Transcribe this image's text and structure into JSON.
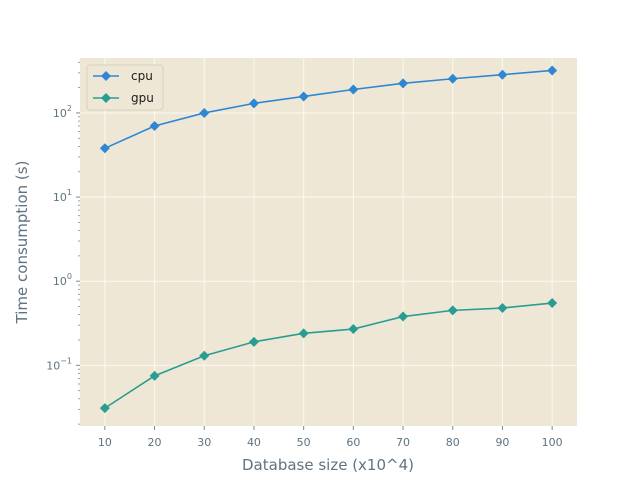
{
  "chart_data": {
    "type": "line",
    "title": "",
    "xlabel": "Database size (x10^4)",
    "ylabel": "Time consumption (s)",
    "y_scale": "log",
    "xlim": [
      5,
      105
    ],
    "ylim": [
      0.019,
      450
    ],
    "x_ticks": [
      10,
      20,
      30,
      40,
      50,
      60,
      70,
      80,
      90,
      100
    ],
    "y_ticks": [
      {
        "value": 0.1,
        "base": "10",
        "exp": "−1"
      },
      {
        "value": 1,
        "base": "10",
        "exp": "0"
      },
      {
        "value": 10,
        "base": "10",
        "exp": "1"
      },
      {
        "value": 100,
        "base": "10",
        "exp": "2"
      }
    ],
    "grid": true,
    "legend_position": "top-left",
    "background": "#efe7d6",
    "grid_color": "#fbf8f0",
    "x": [
      10,
      20,
      30,
      40,
      50,
      60,
      70,
      80,
      90,
      100
    ],
    "series": [
      {
        "name": "cpu",
        "color": "#2f87d3",
        "marker": "diamond",
        "values": [
          38,
          70,
          100,
          130,
          157,
          190,
          225,
          255,
          285,
          320
        ]
      },
      {
        "name": "gpu",
        "color": "#2a9d92",
        "marker": "diamond",
        "values": [
          0.031,
          0.075,
          0.13,
          0.19,
          0.24,
          0.27,
          0.38,
          0.45,
          0.48,
          0.55
        ]
      }
    ]
  }
}
